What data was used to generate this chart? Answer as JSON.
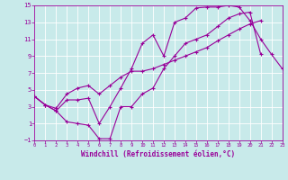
{
  "xlabel": "Windchill (Refroidissement éolien,°C)",
  "xlim": [
    0,
    23
  ],
  "ylim": [
    -1,
    15
  ],
  "xticks": [
    0,
    1,
    2,
    3,
    4,
    5,
    6,
    7,
    8,
    9,
    10,
    11,
    12,
    13,
    14,
    15,
    16,
    17,
    18,
    19,
    20,
    21,
    22,
    23
  ],
  "yticks": [
    -1,
    1,
    3,
    5,
    7,
    9,
    11,
    13,
    15
  ],
  "line_color": "#990099",
  "bg_color": "#c8eaea",
  "grid_color": "#aacccc",
  "line1_x": [
    0,
    1,
    2,
    3,
    4,
    5,
    6,
    7,
    8,
    9,
    10,
    11,
    12,
    13,
    14,
    15,
    16,
    17,
    18,
    19,
    20,
    21,
    22,
    23
  ],
  "line1_y": [
    4.2,
    3.2,
    2.5,
    3.8,
    3.8,
    4.0,
    1.0,
    3.0,
    5.2,
    7.5,
    10.5,
    11.5,
    9.0,
    13.0,
    13.5,
    14.7,
    14.8,
    14.8,
    15.0,
    14.8,
    13.2,
    11.0,
    9.2,
    7.5
  ],
  "line2_x": [
    0,
    1,
    2,
    3,
    4,
    5,
    6,
    7,
    8,
    9,
    10,
    11,
    12,
    13,
    14,
    15,
    16,
    17,
    18,
    19,
    20,
    21
  ],
  "line2_y": [
    4.2,
    3.2,
    2.5,
    1.2,
    1.0,
    0.8,
    -0.8,
    -0.8,
    3.0,
    3.0,
    4.5,
    5.2,
    7.5,
    9.0,
    10.5,
    11.0,
    11.5,
    12.5,
    13.5,
    14.0,
    14.2,
    9.2
  ],
  "line3_x": [
    0,
    1,
    2,
    3,
    4,
    5,
    6,
    7,
    8,
    9,
    10,
    11,
    12,
    13,
    14,
    15,
    16,
    17,
    18,
    19,
    20,
    21
  ],
  "line3_y": [
    4.2,
    3.2,
    2.8,
    4.5,
    5.2,
    5.5,
    4.5,
    5.5,
    6.5,
    7.2,
    7.2,
    7.5,
    8.0,
    8.5,
    9.0,
    9.5,
    10.0,
    10.8,
    11.5,
    12.2,
    12.8,
    13.2
  ]
}
